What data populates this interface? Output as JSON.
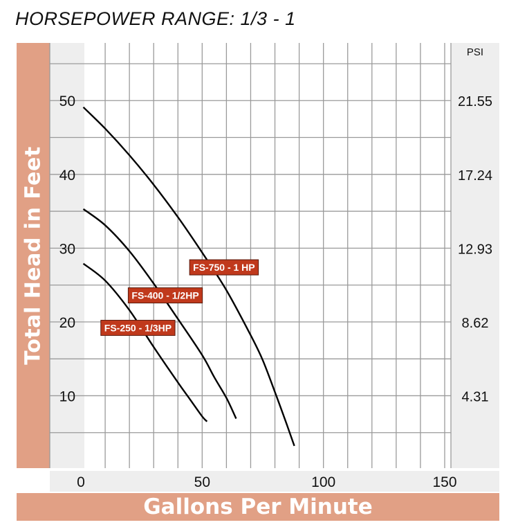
{
  "chart_data": {
    "type": "line",
    "title": "HORSEPOWER RANGE: 1/3 - 1",
    "xlabel": "Gallons Per Minute",
    "ylabel": "Total Head in Feet",
    "y2label": "PSI",
    "xlim": [
      0,
      150
    ],
    "ylim": [
      0,
      58
    ],
    "x_ticks": [
      "0",
      "50",
      "100",
      "150"
    ],
    "y_ticks": [
      {
        "value": 10,
        "label": "10"
      },
      {
        "value": 20,
        "label": "20"
      },
      {
        "value": 30,
        "label": "30"
      },
      {
        "value": 40,
        "label": "40"
      },
      {
        "value": 50,
        "label": "50"
      }
    ],
    "y2_ticks": [
      {
        "value": 10,
        "label": "4.31"
      },
      {
        "value": 20,
        "label": "8.62"
      },
      {
        "value": 30,
        "label": "12.93"
      },
      {
        "value": 40,
        "label": "17.24"
      },
      {
        "value": 50,
        "label": "21.55"
      }
    ],
    "grid": true,
    "series": [
      {
        "name": "FS-250 - 1/3HP",
        "x": [
          1,
          10,
          20,
          30,
          40,
          45,
          50,
          52
        ],
        "y": [
          27.9,
          25.6,
          21.6,
          16.6,
          11.8,
          9.5,
          7.2,
          6.5
        ]
      },
      {
        "name": "FS-400 - 1/2HP",
        "x": [
          1,
          10,
          20,
          30,
          40,
          50,
          55,
          60,
          64
        ],
        "y": [
          35.3,
          33.1,
          29.6,
          25.2,
          20.4,
          15.5,
          12.5,
          9.7,
          6.9
        ]
      },
      {
        "name": "FS-750 - 1 HP",
        "x": [
          1,
          10,
          20,
          30,
          40,
          50,
          60,
          70,
          75,
          80,
          85,
          88
        ],
        "y": [
          49.1,
          46.2,
          42.6,
          38.6,
          34.2,
          29.4,
          24.3,
          18.2,
          14.8,
          10.5,
          6.0,
          3.2
        ]
      }
    ]
  }
}
